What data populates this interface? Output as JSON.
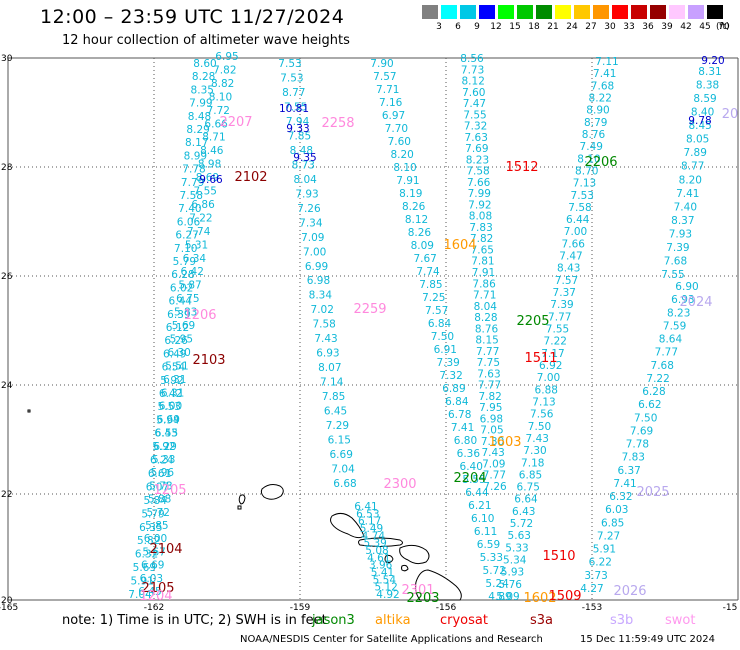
{
  "header": {
    "title": "12:00 – 23:59 UTC 11/27/2024",
    "subtitle": "12 hour collection of altimeter wave heights"
  },
  "colorbar": {
    "unit": "(ft)",
    "labels": [
      "3",
      "6",
      "9",
      "12",
      "15",
      "18",
      "21",
      "24",
      "27",
      "30",
      "33",
      "36",
      "39",
      "42",
      "45",
      "70"
    ],
    "colors": [
      "#808080",
      "#00ffff",
      "#00c8e6",
      "#0000ff",
      "#00ff00",
      "#00c800",
      "#008c00",
      "#ffff00",
      "#ffc800",
      "#ff9600",
      "#ff0000",
      "#c80000",
      "#960000",
      "#ffc8ff",
      "#c8a0ff",
      "#000000"
    ]
  },
  "map": {
    "lon_labels": [
      "-165",
      "-162",
      "-159",
      "-156",
      "-153",
      "-15"
    ],
    "lat_labels": [
      "30",
      "28",
      "26",
      "24",
      "22",
      "20"
    ]
  },
  "tracks": {
    "cyan": [
      [
        "8.60",
        "8.28",
        "8.35",
        "7.99",
        "8.48",
        "8.29",
        "8.17",
        "8.99",
        "7.78",
        "7.79",
        "7.58",
        "7.40",
        "6.06",
        "6.27",
        "7.10",
        "5.79",
        "6.28",
        "6.02",
        "6.44",
        "6.39",
        "6.12",
        "6.26",
        "6.49",
        "6.54",
        "5.92",
        "6.42",
        "5.53",
        "5.94",
        "6.55",
        "6.29",
        "5.33",
        "5.96",
        "5.73",
        "5.88",
        "5.72",
        "5.85",
        "6.00",
        "5.67",
        "6.69",
        "6.03",
        "6.45"
      ],
      [
        "6.95",
        "7.82",
        "8.82",
        "8.10",
        "7.72",
        "6.66",
        "8.71",
        "8.46",
        "8.98",
        "8.69",
        "7.55",
        "6.86",
        "7.22",
        "7.74",
        "5.31",
        "6.34",
        "6.42",
        "5.87",
        "6.75",
        "5.83",
        "5.69",
        "5.95",
        "6.30",
        "5.51",
        "6.31",
        "6.31",
        "6.00",
        "6.69",
        "6.43",
        "5.92",
        "6.24",
        "6.61",
        "6.07",
        "5.84",
        "5.79",
        "6.35",
        "5.82",
        "6.32",
        "5.69",
        "5.91",
        "7.04"
      ],
      [
        "7.53",
        "7.53",
        "8.77",
        "7.55",
        "7.94",
        "7.85",
        "8.48",
        "8.73",
        "8.04",
        "7.93",
        "7.26",
        "7.34",
        "7.09",
        "7.00",
        "6.99",
        "6.98",
        "8.34",
        "7.02",
        "7.58",
        "7.43",
        "6.93",
        "8.07",
        "7.14",
        "7.85",
        "6.45",
        "7.29",
        "6.15",
        "6.69",
        "7.04",
        "6.68"
      ],
      [
        "7.90",
        "7.57",
        "7.71",
        "7.16",
        "6.97",
        "7.70",
        "7.60",
        "8.20",
        "8.10",
        "7.91",
        "8.19",
        "8.26",
        "8.12",
        "8.26",
        "8.09",
        "7.67",
        "7.74",
        "7.85",
        "7.25",
        "7.57",
        "6.84",
        "7.50",
        "6.91",
        "7.39",
        "7.32",
        "6.89",
        "6.84",
        "6.78",
        "7.41",
        "6.80",
        "6.36",
        "6.40",
        "5.55",
        "6.44",
        "6.21",
        "6.10",
        "6.11",
        "6.59",
        "5.33",
        "5.72",
        "5.24",
        "4.89"
      ],
      [
        "8.56",
        "7.73",
        "8.12",
        "7.60",
        "7.47",
        "7.55",
        "7.32",
        "7.63",
        "7.69",
        "8.23",
        "7.58",
        "7.66",
        "7.99",
        "7.92",
        "8.08",
        "7.83",
        "7.82",
        "7.65",
        "7.81",
        "7.91",
        "7.86",
        "7.71",
        "8.04",
        "8.28",
        "8.76",
        "8.15",
        "7.77",
        "7.75",
        "7.63",
        "7.77",
        "7.82",
        "7.95",
        "6.98",
        "7.05",
        "7.30",
        "7.43",
        "7.09",
        "7.77",
        "7.26"
      ],
      [
        "7.11",
        "7.41",
        "7.68",
        "8.22",
        "8.90",
        "8.79",
        "8.76",
        "7.49",
        "8.10",
        "8.70",
        "7.13",
        "7.53",
        "7.58",
        "6.44",
        "7.00",
        "7.66",
        "7.47",
        "8.43",
        "7.57",
        "7.37",
        "7.39",
        "7.77",
        "7.55",
        "7.22",
        "7.17",
        "6.92",
        "7.00",
        "6.88",
        "7.13",
        "7.56",
        "7.50",
        "7.43",
        "7.30",
        "7.18",
        "6.85",
        "6.75",
        "6.64",
        "6.43",
        "5.72",
        "5.63",
        "5.33",
        "5.34",
        "5.93",
        "5.76",
        "5.09"
      ],
      [
        "6.90",
        "6.93",
        "8.23",
        "7.59",
        "8.64",
        "7.77",
        "7.68",
        "7.22",
        "6.28",
        "6.62",
        "7.50",
        "7.69",
        "7.78",
        "7.83",
        "6.37",
        "7.41",
        "6.32",
        "6.03",
        "6.85",
        "7.27",
        "5.91",
        "6.22",
        "3.73",
        "4.27"
      ],
      [
        "8.31",
        "8.38",
        "8.59",
        "8.40",
        "8.45",
        "8.05",
        "7.89",
        "8.77",
        "8.20",
        "7.41",
        "7.40",
        "8.37",
        "7.93",
        "7.39",
        "7.68",
        "7.55"
      ],
      [
        "6.41",
        "6.53",
        "6.17",
        "5.49",
        "4.74",
        "5.39",
        "5.08",
        "4.61",
        "3.96",
        "5.41",
        "5.54",
        "5.12",
        "4.92"
      ]
    ],
    "blue": [
      "10.81",
      "9.33",
      "9.35",
      "9.66",
      "9.20",
      "9.78"
    ]
  },
  "passes": [
    {
      "label": "2207",
      "color": "pink"
    },
    {
      "label": "2258",
      "color": "pink"
    },
    {
      "label": "2102",
      "color": "darkred"
    },
    {
      "label": "1512",
      "color": "red"
    },
    {
      "label": "2206",
      "color": "green"
    },
    {
      "label": "20",
      "color": "lavender"
    },
    {
      "label": "1604",
      "color": "orange"
    },
    {
      "label": "2024",
      "color": "lavender"
    },
    {
      "label": "1206",
      "color": "pink"
    },
    {
      "label": "2259",
      "color": "pink"
    },
    {
      "label": "2205",
      "color": "green"
    },
    {
      "label": "2103",
      "color": "darkred"
    },
    {
      "label": "1511",
      "color": "red"
    },
    {
      "label": "1603",
      "color": "orange"
    },
    {
      "label": "1205",
      "color": "pink"
    },
    {
      "label": "2300",
      "color": "pink"
    },
    {
      "label": "2204",
      "color": "green"
    },
    {
      "label": "2025",
      "color": "lavender"
    },
    {
      "label": "2104",
      "color": "darkred"
    },
    {
      "label": "1510",
      "color": "red"
    },
    {
      "label": "2105",
      "color": "darkred"
    },
    {
      "label": "2301",
      "color": "pink"
    },
    {
      "label": "2203",
      "color": "green"
    },
    {
      "label": "1602",
      "color": "orange"
    },
    {
      "label": "1509",
      "color": "red"
    },
    {
      "label": "2026",
      "color": "lavender"
    },
    {
      "label": "1204",
      "color": "pink"
    }
  ],
  "footer": {
    "note": "note:  1) Time is in UTC; 2) SWH is in feet",
    "legend": [
      {
        "label": "jason3",
        "color": "#008800"
      },
      {
        "label": "altika",
        "color": "#ff9900"
      },
      {
        "label": "cryosat",
        "color": "#ee0000"
      },
      {
        "label": "s3a",
        "color": "#990000"
      },
      {
        "label": "s3b",
        "color": "#c8a8ff"
      },
      {
        "label": "swot",
        "color": "#ff99ee"
      }
    ],
    "credit": "NOAA/NESDIS Center for Satellite Applications and Research",
    "timestamp": "15 Dec 11:59:49 UTC 2024"
  }
}
